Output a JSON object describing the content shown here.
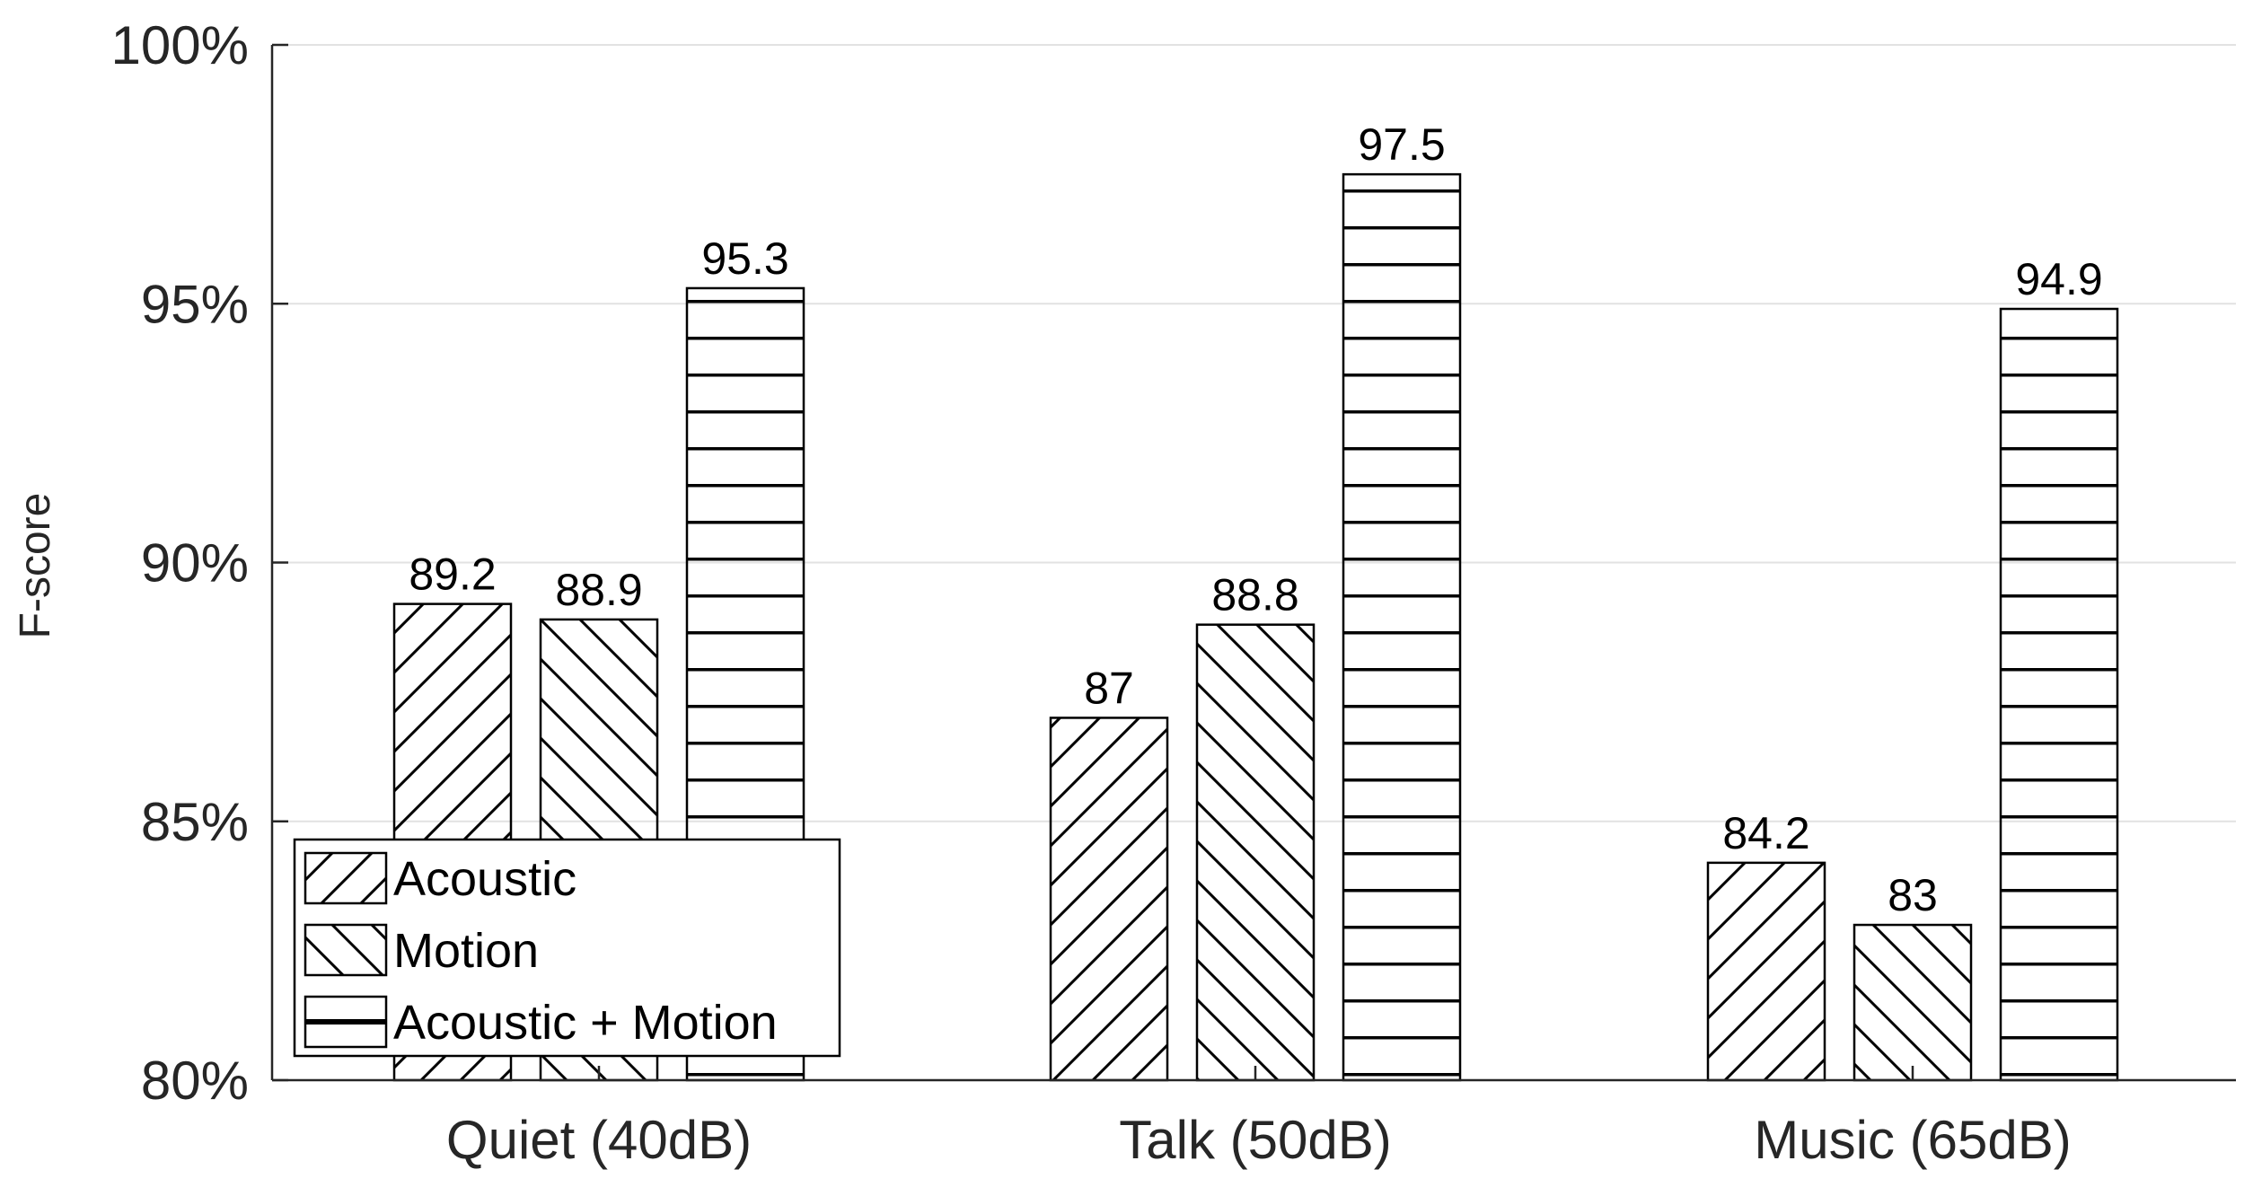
{
  "chart_data": {
    "type": "bar",
    "ylabel": "F-score",
    "xlabel": "",
    "ylim": [
      80,
      100
    ],
    "yticks": [
      80,
      85,
      90,
      95,
      100
    ],
    "ytick_labels": [
      "80%",
      "85%",
      "90%",
      "95%",
      "100%"
    ],
    "grid": "horizontal",
    "legend_position": "bottom-left",
    "categories": [
      "Quiet (40dB)",
      "Talk (50dB)",
      "Music (65dB)"
    ],
    "series": [
      {
        "name": "Acoustic",
        "values": [
          89.2,
          87,
          84.2
        ],
        "labels": [
          "89.2",
          "87",
          "84.2"
        ],
        "pattern": "hatch-forward"
      },
      {
        "name": "Motion",
        "values": [
          88.9,
          88.8,
          83
        ],
        "labels": [
          "88.9",
          "88.8",
          "83"
        ],
        "pattern": "hatch-backward"
      },
      {
        "name": "Acoustic + Motion",
        "values": [
          95.3,
          97.5,
          94.9
        ],
        "labels": [
          "95.3",
          "97.5",
          "94.9"
        ],
        "pattern": "horizontal-lines"
      }
    ]
  }
}
